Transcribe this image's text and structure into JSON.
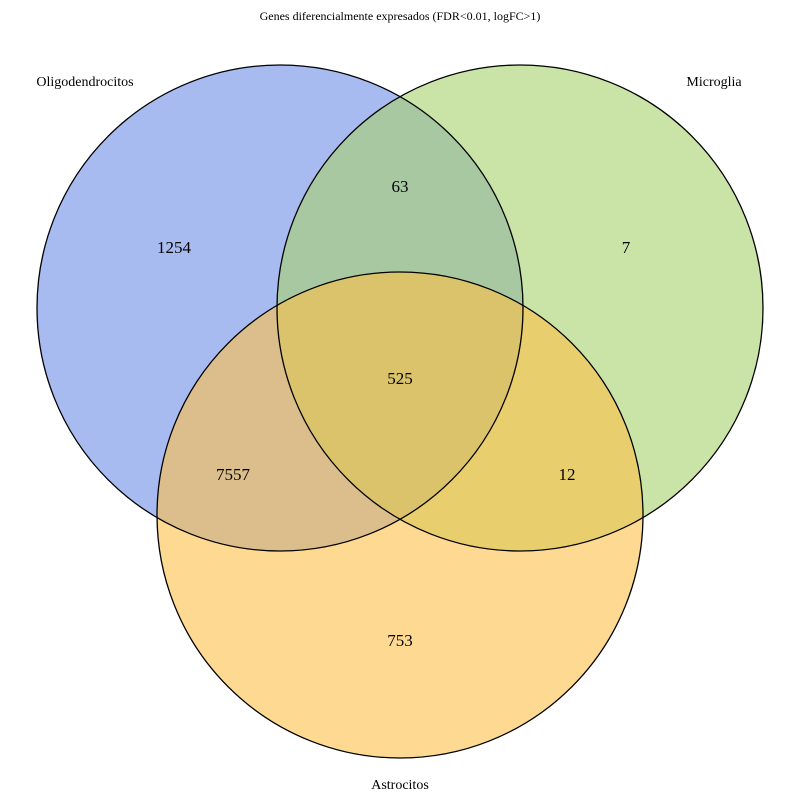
{
  "title": "Genes diferencialmente expresados (FDR<0.01, logFC>1)",
  "sets": [
    {
      "name": "Oligodendrocitos",
      "color": "#6E8EE8"
    },
    {
      "name": "Microglia",
      "color": "#A6D06A"
    },
    {
      "name": "Astrocitos",
      "color": "#FDC04A"
    }
  ],
  "regions": {
    "oligodendrocitos_only": "1254",
    "microglia_only": "7",
    "astrocitos_only": "753",
    "oligodendrocitos_microglia": "63",
    "oligodendrocitos_astrocitos": "7557",
    "microglia_astrocitos": "12",
    "all_three": "525"
  }
}
